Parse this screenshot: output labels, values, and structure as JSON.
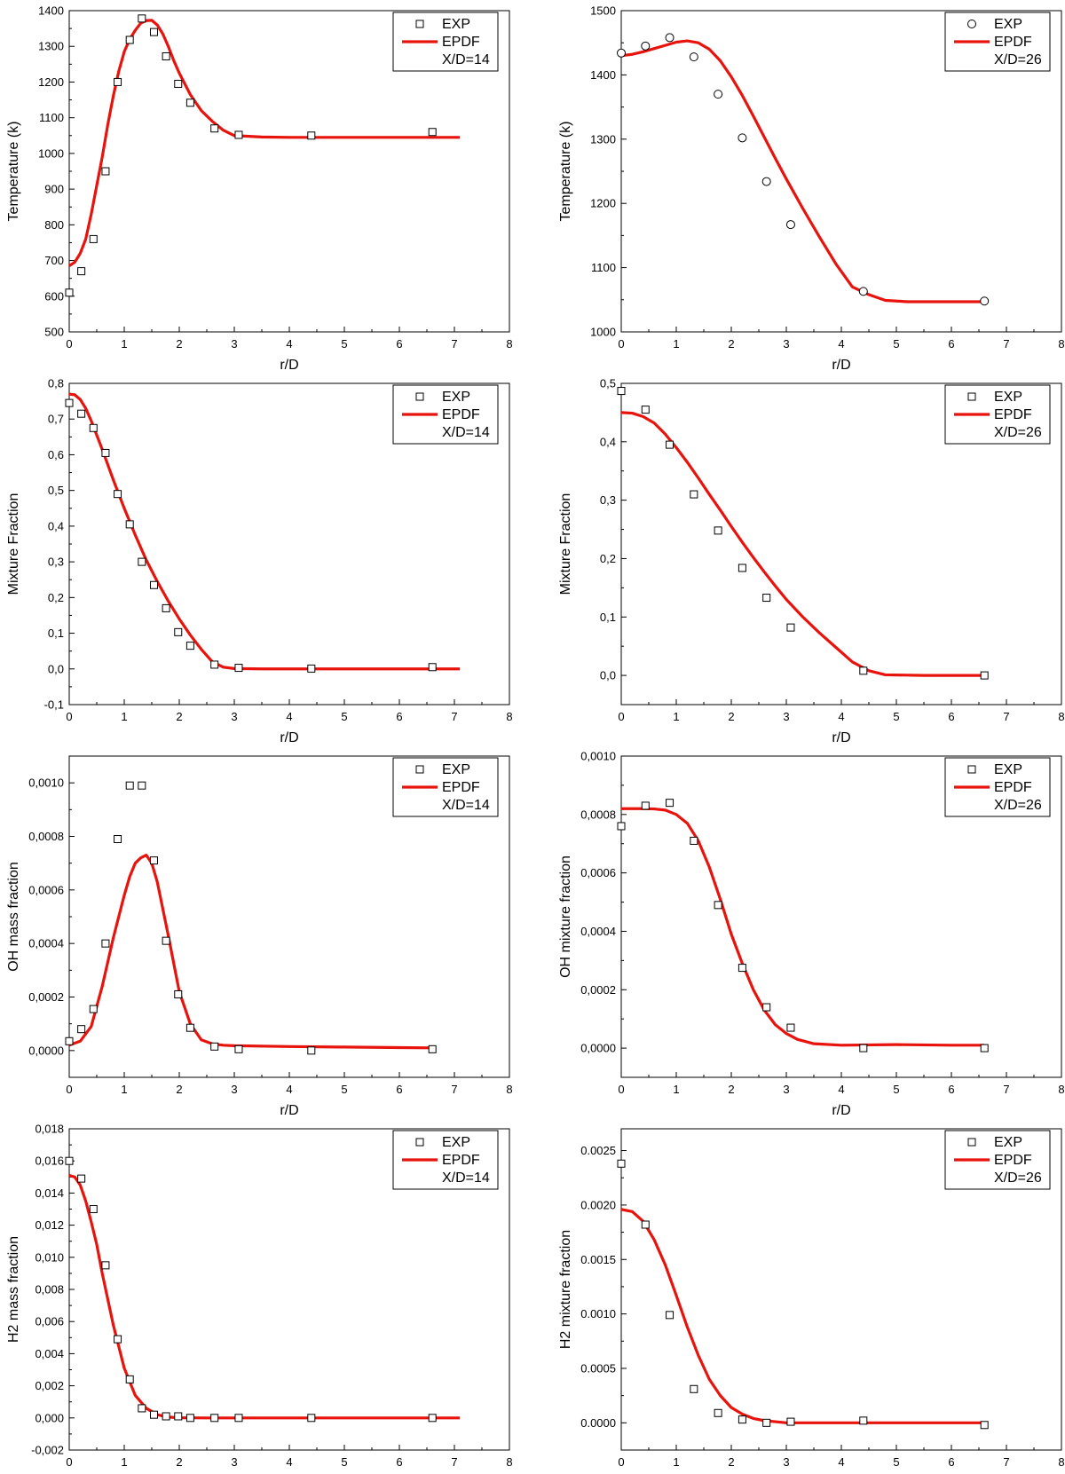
{
  "colors": {
    "exp": "#000000",
    "epdf": "#e8130c",
    "axis": "#000000"
  },
  "chart_data": [
    {
      "type": "line",
      "xlabel": "r/D",
      "ylabel": "Temperature (k)",
      "xlim": [
        0,
        8
      ],
      "ylim": [
        500,
        1400
      ],
      "xticks": [
        "0",
        "1",
        "2",
        "3",
        "4",
        "5",
        "6",
        "7",
        "8"
      ],
      "yticks": [
        "500",
        "600",
        "700",
        "800",
        "900",
        "1000",
        "1100",
        "1200",
        "1300",
        "1400"
      ],
      "marker": "square",
      "legend": {
        "position": "top-right",
        "exp_label": "EXP",
        "epdf_label": "EPDF",
        "note": "X/D=14"
      },
      "series": [
        {
          "name": "EXP",
          "kind": "scatter",
          "x": [
            0,
            0.22,
            0.44,
            0.66,
            0.88,
            1.1,
            1.32,
            1.54,
            1.76,
            1.98,
            2.2,
            2.64,
            3.08,
            4.4,
            6.6
          ],
          "y": [
            610,
            670,
            760,
            950,
            1200,
            1318,
            1378,
            1340,
            1272,
            1195,
            1142,
            1070,
            1052,
            1050,
            1060
          ]
        },
        {
          "name": "EPDF",
          "kind": "line",
          "x": [
            0,
            0.1,
            0.2,
            0.3,
            0.4,
            0.5,
            0.6,
            0.7,
            0.8,
            0.9,
            1.0,
            1.1,
            1.2,
            1.3,
            1.4,
            1.5,
            1.6,
            1.7,
            1.8,
            1.9,
            2.0,
            2.2,
            2.4,
            2.6,
            2.8,
            3.0,
            3.5,
            4.0,
            5.0,
            6.0,
            7.1
          ],
          "y": [
            685,
            695,
            720,
            760,
            830,
            910,
            990,
            1080,
            1160,
            1230,
            1285,
            1320,
            1345,
            1365,
            1372,
            1373,
            1360,
            1335,
            1300,
            1260,
            1225,
            1165,
            1120,
            1090,
            1065,
            1050,
            1046,
            1045,
            1045,
            1045,
            1045
          ]
        }
      ]
    },
    {
      "type": "line",
      "xlabel": "r/D",
      "ylabel": "Temperature (k)",
      "xlim": [
        0,
        8
      ],
      "ylim": [
        1000,
        1500
      ],
      "xticks": [
        "0",
        "1",
        "2",
        "3",
        "4",
        "5",
        "6",
        "7",
        "8"
      ],
      "yticks": [
        "1000",
        "1100",
        "1200",
        "1300",
        "1400",
        "1500"
      ],
      "marker": "circle",
      "legend": {
        "position": "top-right",
        "exp_label": "EXP",
        "epdf_label": "EPDF",
        "note": "X/D=26"
      },
      "series": [
        {
          "name": "EXP",
          "kind": "scatter",
          "x": [
            0,
            0.44,
            0.88,
            1.32,
            1.76,
            2.2,
            2.64,
            3.08,
            4.4,
            6.6
          ],
          "y": [
            1434,
            1445,
            1458,
            1428,
            1370,
            1302,
            1234,
            1167,
            1063,
            1048
          ]
        },
        {
          "name": "EPDF",
          "kind": "line",
          "x": [
            0,
            0.2,
            0.4,
            0.6,
            0.8,
            1.0,
            1.2,
            1.4,
            1.6,
            1.8,
            2.0,
            2.2,
            2.4,
            2.6,
            2.8,
            3.0,
            3.3,
            3.6,
            3.9,
            4.2,
            4.5,
            4.8,
            5.2,
            6.0,
            6.6
          ],
          "y": [
            1430,
            1432,
            1436,
            1441,
            1446,
            1451,
            1453,
            1450,
            1440,
            1422,
            1397,
            1368,
            1336,
            1303,
            1270,
            1238,
            1192,
            1148,
            1106,
            1070,
            1058,
            1049,
            1047,
            1047,
            1047
          ]
        }
      ]
    },
    {
      "type": "line",
      "xlabel": "r/D",
      "ylabel": "Mixture Fraction",
      "xlim": [
        0,
        8
      ],
      "ylim": [
        -0.1,
        0.8
      ],
      "xticks": [
        "0",
        "1",
        "2",
        "3",
        "4",
        "5",
        "6",
        "7",
        "8"
      ],
      "yticks": [
        "-0,1",
        "0,0",
        "0,1",
        "0,2",
        "0,3",
        "0,4",
        "0,5",
        "0,6",
        "0,7",
        "0,8"
      ],
      "marker": "square",
      "legend": {
        "position": "top-right",
        "exp_label": "EXP",
        "epdf_label": "EPDF",
        "note": "X/D=14"
      },
      "series": [
        {
          "name": "EXP",
          "kind": "scatter",
          "x": [
            0,
            0.22,
            0.44,
            0.66,
            0.88,
            1.1,
            1.32,
            1.54,
            1.76,
            1.98,
            2.2,
            2.64,
            3.08,
            4.4,
            6.6
          ],
          "y": [
            0.745,
            0.715,
            0.675,
            0.605,
            0.49,
            0.405,
            0.3,
            0.235,
            0.17,
            0.103,
            0.065,
            0.012,
            0.003,
            0.001,
            0.005
          ]
        },
        {
          "name": "EPDF",
          "kind": "line",
          "x": [
            0,
            0.1,
            0.2,
            0.3,
            0.4,
            0.5,
            0.6,
            0.8,
            1.0,
            1.2,
            1.4,
            1.6,
            1.8,
            2.0,
            2.2,
            2.4,
            2.6,
            2.8,
            3.0,
            3.5,
            4.0,
            5.0,
            6.0,
            7.1
          ],
          "y": [
            0.77,
            0.768,
            0.755,
            0.73,
            0.695,
            0.655,
            0.615,
            0.53,
            0.45,
            0.375,
            0.305,
            0.245,
            0.19,
            0.14,
            0.095,
            0.055,
            0.02,
            0.005,
            0.001,
            0.0,
            0.0,
            0.0,
            0.0,
            0.0
          ]
        }
      ]
    },
    {
      "type": "line",
      "xlabel": "r/D",
      "ylabel": "Mixture Fraction",
      "xlim": [
        0,
        8
      ],
      "ylim": [
        -0.05,
        0.5
      ],
      "xticks": [
        "0",
        "1",
        "2",
        "3",
        "4",
        "5",
        "6",
        "7",
        "8"
      ],
      "yticks": [
        "0,0",
        "0,1",
        "0,2",
        "0,3",
        "0,4",
        "0,5"
      ],
      "marker": "square",
      "legend": {
        "position": "top-right",
        "exp_label": "EXP",
        "epdf_label": "EPDF",
        "note": "X/D=26"
      },
      "series": [
        {
          "name": "EXP",
          "kind": "scatter",
          "x": [
            0,
            0.44,
            0.88,
            1.32,
            1.76,
            2.2,
            2.64,
            3.08,
            4.4,
            6.6
          ],
          "y": [
            0.487,
            0.455,
            0.395,
            0.31,
            0.248,
            0.184,
            0.133,
            0.082,
            0.008,
            0.0
          ]
        },
        {
          "name": "EPDF",
          "kind": "line",
          "x": [
            0,
            0.2,
            0.4,
            0.6,
            0.8,
            1.0,
            1.2,
            1.4,
            1.6,
            1.8,
            2.0,
            2.2,
            2.4,
            2.6,
            2.8,
            3.0,
            3.3,
            3.6,
            3.9,
            4.2,
            4.5,
            4.8,
            5.5,
            6.6
          ],
          "y": [
            0.45,
            0.449,
            0.443,
            0.432,
            0.413,
            0.39,
            0.365,
            0.338,
            0.31,
            0.283,
            0.255,
            0.228,
            0.202,
            0.177,
            0.153,
            0.13,
            0.1,
            0.073,
            0.048,
            0.023,
            0.008,
            0.001,
            0.0,
            0.0
          ]
        }
      ]
    },
    {
      "type": "line",
      "xlabel": "r/D",
      "ylabel": "OH mass fraction",
      "xlim": [
        0,
        8
      ],
      "ylim": [
        -0.0001,
        0.0011
      ],
      "xticks": [
        "0",
        "1",
        "2",
        "3",
        "4",
        "5",
        "6",
        "7",
        "8"
      ],
      "yticks": [
        "0,0000",
        "0,0002",
        "0,0004",
        "0,0006",
        "0,0008",
        "0,0010"
      ],
      "marker": "square",
      "legend": {
        "position": "top-right",
        "exp_label": "EXP",
        "epdf_label": "EPDF",
        "note": "X/D=14"
      },
      "series": [
        {
          "name": "EXP",
          "kind": "scatter",
          "x": [
            0,
            0.22,
            0.44,
            0.66,
            0.88,
            1.1,
            1.32,
            1.54,
            1.76,
            1.98,
            2.2,
            2.64,
            3.08,
            4.4,
            6.6
          ],
          "y": [
            3.5e-05,
            8e-05,
            0.000155,
            0.0004,
            0.00079,
            0.00099,
            0.00099,
            0.00071,
            0.00041,
            0.00021,
            8.5e-05,
            1.5e-05,
            5e-06,
            0.0,
            5e-06
          ]
        },
        {
          "name": "EPDF",
          "kind": "line",
          "x": [
            0,
            0.2,
            0.4,
            0.6,
            0.8,
            1.0,
            1.1,
            1.2,
            1.3,
            1.4,
            1.5,
            1.6,
            1.8,
            2.0,
            2.2,
            2.4,
            2.6,
            2.8,
            3.0,
            4.0,
            5.0,
            6.0,
            6.6
          ],
          "y": [
            2e-05,
            3.5e-05,
            9e-05,
            0.00024,
            0.00042,
            0.00058,
            0.00065,
            0.0007,
            0.00072,
            0.00073,
            0.0007,
            0.00063,
            0.00043,
            0.00022,
            0.0001,
            4e-05,
            2.5e-05,
            2e-05,
            1.8e-05,
            1.5e-05,
            1.3e-05,
            1.1e-05,
            1e-05
          ]
        }
      ]
    },
    {
      "type": "line",
      "xlabel": "r/D",
      "ylabel": "OH mixture fraction",
      "xlim": [
        0,
        8
      ],
      "ylim": [
        -0.0001,
        0.001
      ],
      "xticks": [
        "0",
        "1",
        "2",
        "3",
        "4",
        "5",
        "6",
        "7",
        "8"
      ],
      "yticks": [
        "0,0000",
        "0,0002",
        "0,0004",
        "0,0006",
        "0,0008",
        "0,0010"
      ],
      "marker": "square",
      "legend": {
        "position": "top-right",
        "exp_label": "EXP",
        "epdf_label": "EPDF",
        "note": "X/D=26"
      },
      "series": [
        {
          "name": "EXP",
          "kind": "scatter",
          "x": [
            0,
            0.44,
            0.88,
            1.32,
            1.76,
            2.2,
            2.64,
            3.08,
            4.4,
            6.6
          ],
          "y": [
            0.00076,
            0.00083,
            0.00084,
            0.00071,
            0.00049,
            0.000275,
            0.00014,
            7e-05,
            0.0,
            0.0
          ]
        },
        {
          "name": "EPDF",
          "kind": "line",
          "x": [
            0,
            0.2,
            0.4,
            0.6,
            0.8,
            1.0,
            1.2,
            1.4,
            1.6,
            1.8,
            2.0,
            2.2,
            2.4,
            2.6,
            2.8,
            3.0,
            3.2,
            3.5,
            4.0,
            5.0,
            6.0,
            6.6
          ],
          "y": [
            0.00082,
            0.00082,
            0.00082,
            0.000819,
            0.000815,
            0.0008,
            0.00077,
            0.00071,
            0.00062,
            0.00051,
            0.00039,
            0.00029,
            0.0002,
            0.00013,
            8e-05,
            5e-05,
            3e-05,
            1.5e-05,
            1e-05,
            1.2e-05,
            1e-05,
            1e-05
          ]
        }
      ]
    },
    {
      "type": "line",
      "xlabel": "r/D",
      "ylabel": "H2 mass fraction",
      "xlim": [
        0,
        8
      ],
      "ylim": [
        -0.002,
        0.018
      ],
      "xticks": [
        "0",
        "1",
        "2",
        "3",
        "4",
        "5",
        "6",
        "7",
        "8"
      ],
      "yticks": [
        "-0,002",
        "0,000",
        "0,002",
        "0,004",
        "0,006",
        "0,008",
        "0,010",
        "0,012",
        "0,014",
        "0,016",
        "0,018"
      ],
      "marker": "square",
      "legend": {
        "position": "top-right",
        "exp_label": "EXP",
        "epdf_label": "EPDF",
        "note": "X/D=14"
      },
      "series": [
        {
          "name": "EXP",
          "kind": "scatter",
          "x": [
            0,
            0.22,
            0.44,
            0.66,
            0.88,
            1.1,
            1.32,
            1.54,
            1.76,
            1.98,
            2.2,
            2.64,
            3.08,
            4.4,
            6.6
          ],
          "y": [
            0.016,
            0.0149,
            0.013,
            0.0095,
            0.0049,
            0.0024,
            0.0006,
            0.0002,
            0.0001,
            0.0001,
            0.0,
            0.0,
            0.0,
            0.0,
            0.0
          ]
        },
        {
          "name": "EPDF",
          "kind": "line",
          "x": [
            0,
            0.1,
            0.2,
            0.3,
            0.4,
            0.5,
            0.6,
            0.8,
            1.0,
            1.2,
            1.4,
            1.6,
            1.8,
            2.0,
            2.5,
            3.0,
            4.0,
            5.0,
            6.0,
            7.1
          ],
          "y": [
            0.0151,
            0.015,
            0.0145,
            0.0135,
            0.0122,
            0.0108,
            0.009,
            0.0058,
            0.0031,
            0.0014,
            0.0006,
            0.0002,
            5e-05,
            1e-05,
            0.0,
            0.0,
            0.0,
            0.0,
            0.0,
            0.0
          ]
        }
      ]
    },
    {
      "type": "line",
      "xlabel": "r/D",
      "ylabel": "H2 mixture fraction",
      "xlim": [
        0,
        8
      ],
      "ylim": [
        -0.00025,
        0.0027
      ],
      "xticks": [
        "0",
        "1",
        "2",
        "3",
        "4",
        "5",
        "6",
        "7",
        "8"
      ],
      "yticks": [
        "0.0000",
        "0.0005",
        "0.0010",
        "0.0015",
        "0.0020",
        "0.0025"
      ],
      "marker": "square",
      "legend": {
        "position": "top-right",
        "exp_label": "EXP",
        "epdf_label": "EPDF",
        "note": "X/D=26"
      },
      "series": [
        {
          "name": "EXP",
          "kind": "scatter",
          "x": [
            0,
            0.44,
            0.88,
            1.32,
            1.76,
            2.2,
            2.64,
            3.08,
            4.4,
            6.6
          ],
          "y": [
            0.00238,
            0.00182,
            0.00099,
            0.00031,
            9e-05,
            3e-05,
            0.0,
            1e-05,
            2e-05,
            -2e-05
          ]
        },
        {
          "name": "EPDF",
          "kind": "line",
          "x": [
            0,
            0.2,
            0.4,
            0.6,
            0.8,
            1.0,
            1.2,
            1.4,
            1.6,
            1.8,
            2.0,
            2.2,
            2.4,
            2.6,
            2.8,
            3.0,
            3.5,
            4.0,
            5.0,
            6.0,
            6.6
          ],
          "y": [
            0.00196,
            0.00194,
            0.00185,
            0.00168,
            0.00145,
            0.00117,
            0.00088,
            0.00062,
            0.0004,
            0.00025,
            0.00014,
            8e-05,
            4e-05,
            2e-05,
            1e-05,
            0.0,
            0.0,
            0.0,
            0.0,
            0.0,
            0.0
          ]
        }
      ]
    }
  ]
}
